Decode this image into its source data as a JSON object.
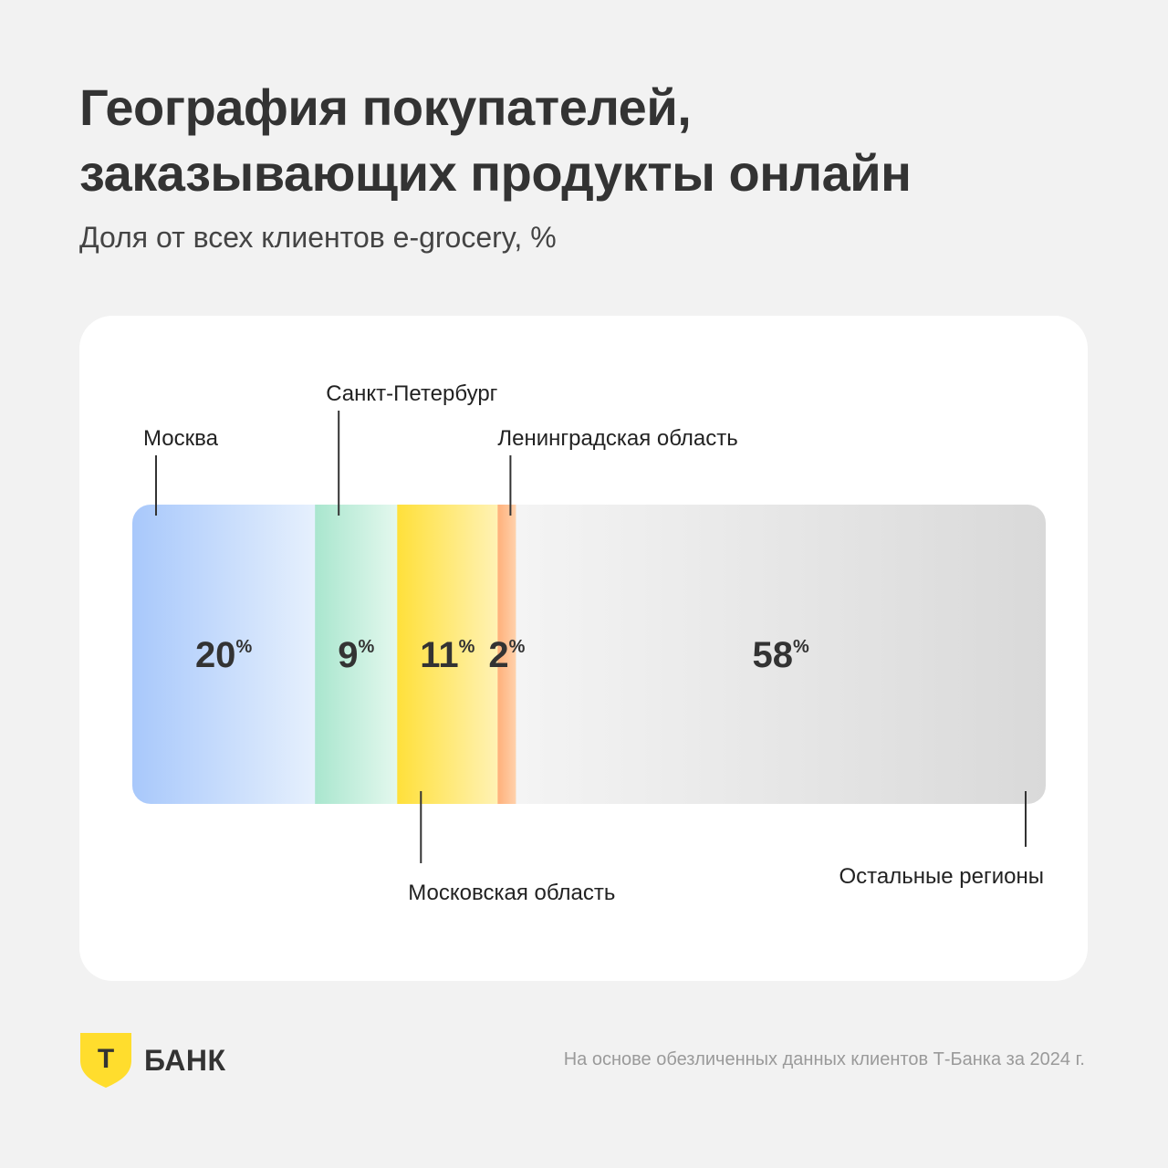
{
  "header": {
    "title_line1": "География покупателей,",
    "title_line2": "заказывающих продукты онлайн",
    "subtitle": "Доля от всех клиентов e-grocery, %"
  },
  "chart_data": {
    "type": "bar",
    "orientation": "horizontal",
    "stacked": true,
    "unit": "%",
    "range": [
      0,
      100
    ],
    "segments": [
      {
        "name": "Москва",
        "value": 20,
        "label_position": "top",
        "color_start": "#a8c8fb",
        "color_end": "#e6f0fd"
      },
      {
        "name": "Санкт-Петербург",
        "value": 9,
        "label_position": "top",
        "color_start": "#a9e6ce",
        "color_end": "#e4f8ee"
      },
      {
        "name": "Московская область",
        "value": 11,
        "label_position": "bottom",
        "color_start": "#ffe03a",
        "color_end": "#fff2b5"
      },
      {
        "name": "Ленинградская область",
        "value": 2,
        "label_position": "top",
        "color_start": "#ffb07a",
        "color_end": "#ffd2ad"
      },
      {
        "name": "Остальные регионы",
        "value": 58,
        "label_position": "bottom",
        "color_start": "#f4f4f4",
        "color_end": "#d9d9d9"
      }
    ]
  },
  "footer": {
    "brand": "БАНК",
    "logo_letter": "Т",
    "logo_color": "#ffdd2d",
    "note": "На основе обезличенных данных клиентов Т-Банка за 2024 г."
  }
}
